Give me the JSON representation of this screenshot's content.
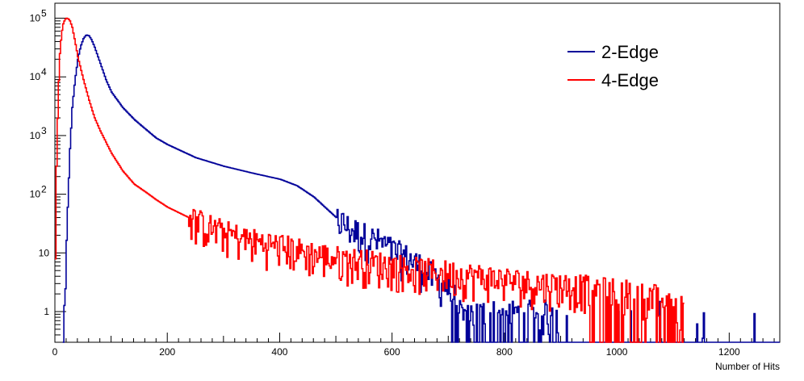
{
  "chart_data": {
    "type": "line",
    "title": "",
    "xlabel": "Number of Hits",
    "ylabel": "",
    "xlim": [
      0,
      1290
    ],
    "ylim": [
      0.3,
      180000
    ],
    "yscale": "log",
    "x_ticks": [
      "0",
      "200",
      "400",
      "600",
      "800",
      "1000",
      "1200"
    ],
    "y_ticks": [
      {
        "value": 1,
        "label": "1"
      },
      {
        "value": 10,
        "label": "10"
      },
      {
        "value": 100,
        "label": "10",
        "exp": "2"
      },
      {
        "value": 1000,
        "label": "10",
        "exp": "3"
      },
      {
        "value": 10000,
        "label": "10",
        "exp": "4"
      },
      {
        "value": 100000,
        "label": "10",
        "exp": "5"
      }
    ],
    "legend_position": "top-right",
    "series": [
      {
        "name": "2-Edge",
        "color": "#000099",
        "x": [
          14,
          18,
          22,
          26,
          30,
          35,
          40,
          45,
          50,
          55,
          60,
          65,
          70,
          80,
          90,
          100,
          120,
          140,
          160,
          180,
          200,
          250,
          300,
          350,
          400,
          430,
          460,
          480,
          500,
          520,
          540,
          560,
          580,
          600,
          620,
          640,
          660,
          680,
          700,
          720
        ],
        "values": [
          0.3,
          2,
          60,
          600,
          3000,
          9000,
          20000,
          33000,
          45000,
          52000,
          50000,
          42000,
          32000,
          17000,
          9000,
          5500,
          3000,
          1900,
          1300,
          900,
          700,
          420,
          300,
          230,
          180,
          140,
          90,
          60,
          40,
          28,
          22,
          18,
          15,
          11,
          9,
          7,
          5,
          3.5,
          2.5,
          1.2
        ]
      },
      {
        "name": "4-Edge",
        "color": "#ff0000",
        "x": [
          0,
          2,
          5,
          8,
          11,
          14,
          17,
          20,
          23,
          26,
          30,
          35,
          40,
          50,
          60,
          70,
          80,
          100,
          120,
          140,
          160,
          180,
          200,
          250,
          300,
          350,
          400,
          450,
          500,
          550,
          600,
          650,
          700,
          750,
          800,
          850,
          900,
          950,
          1000,
          1050,
          1100
        ],
        "values": [
          10,
          300,
          5000,
          25000,
          55000,
          80000,
          95000,
          100000,
          98000,
          90000,
          70000,
          40000,
          22000,
          9000,
          4000,
          2000,
          1200,
          500,
          250,
          150,
          110,
          80,
          60,
          35,
          22,
          16,
          13,
          10,
          8,
          7,
          6,
          5,
          4.5,
          4,
          3.5,
          3,
          2.8,
          2.5,
          2.2,
          2,
          1.5
        ]
      }
    ]
  }
}
